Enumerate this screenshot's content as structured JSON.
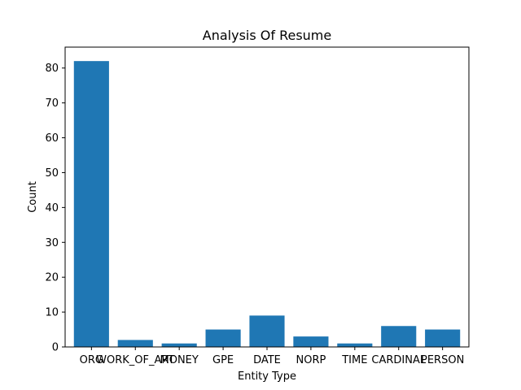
{
  "chart_data": {
    "type": "bar",
    "title": "Analysis Of Resume",
    "xlabel": "Entity Type",
    "ylabel": "Count",
    "categories": [
      "ORG",
      "WORK_OF_ART",
      "MONEY",
      "GPE",
      "DATE",
      "NORP",
      "TIME",
      "CARDINAL",
      "PERSON"
    ],
    "values": [
      82,
      2,
      1,
      5,
      9,
      3,
      1,
      6,
      5
    ],
    "ylim": [
      0,
      86
    ],
    "yticks": [
      0,
      10,
      20,
      30,
      40,
      50,
      60,
      70,
      80
    ],
    "bar_color": "#1f77b4",
    "grid": false
  }
}
